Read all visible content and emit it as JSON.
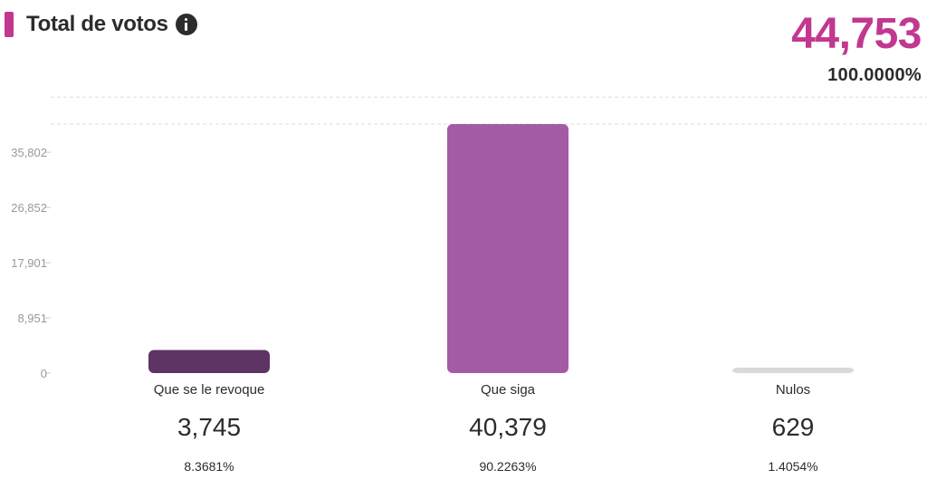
{
  "header": {
    "title": "Total de votos",
    "info_icon": "info-circle-icon",
    "accent_color": "#c2378f",
    "total_votes": "44,753",
    "total_percent": "100.0000%"
  },
  "chart_data": {
    "type": "bar",
    "title": "Total de votos",
    "categories": [
      "Que se le revoque",
      "Que siga",
      "Nulos"
    ],
    "values": [
      3745,
      40379,
      629
    ],
    "value_labels": [
      "3,745",
      "40,379",
      "629"
    ],
    "percents": [
      "8.3681%",
      "90.2263%",
      "1.4054%"
    ],
    "colors": [
      "#5e3464",
      "#a45ba5",
      "#d9d9d9"
    ],
    "y_ticks": [
      0,
      8951,
      17901,
      26852,
      35802
    ],
    "y_tick_labels": [
      "0",
      "8,951",
      "17,901",
      "26,852",
      "35,802"
    ],
    "ylim": [
      0,
      40379
    ],
    "grid": true,
    "grid_style": "dashed"
  }
}
